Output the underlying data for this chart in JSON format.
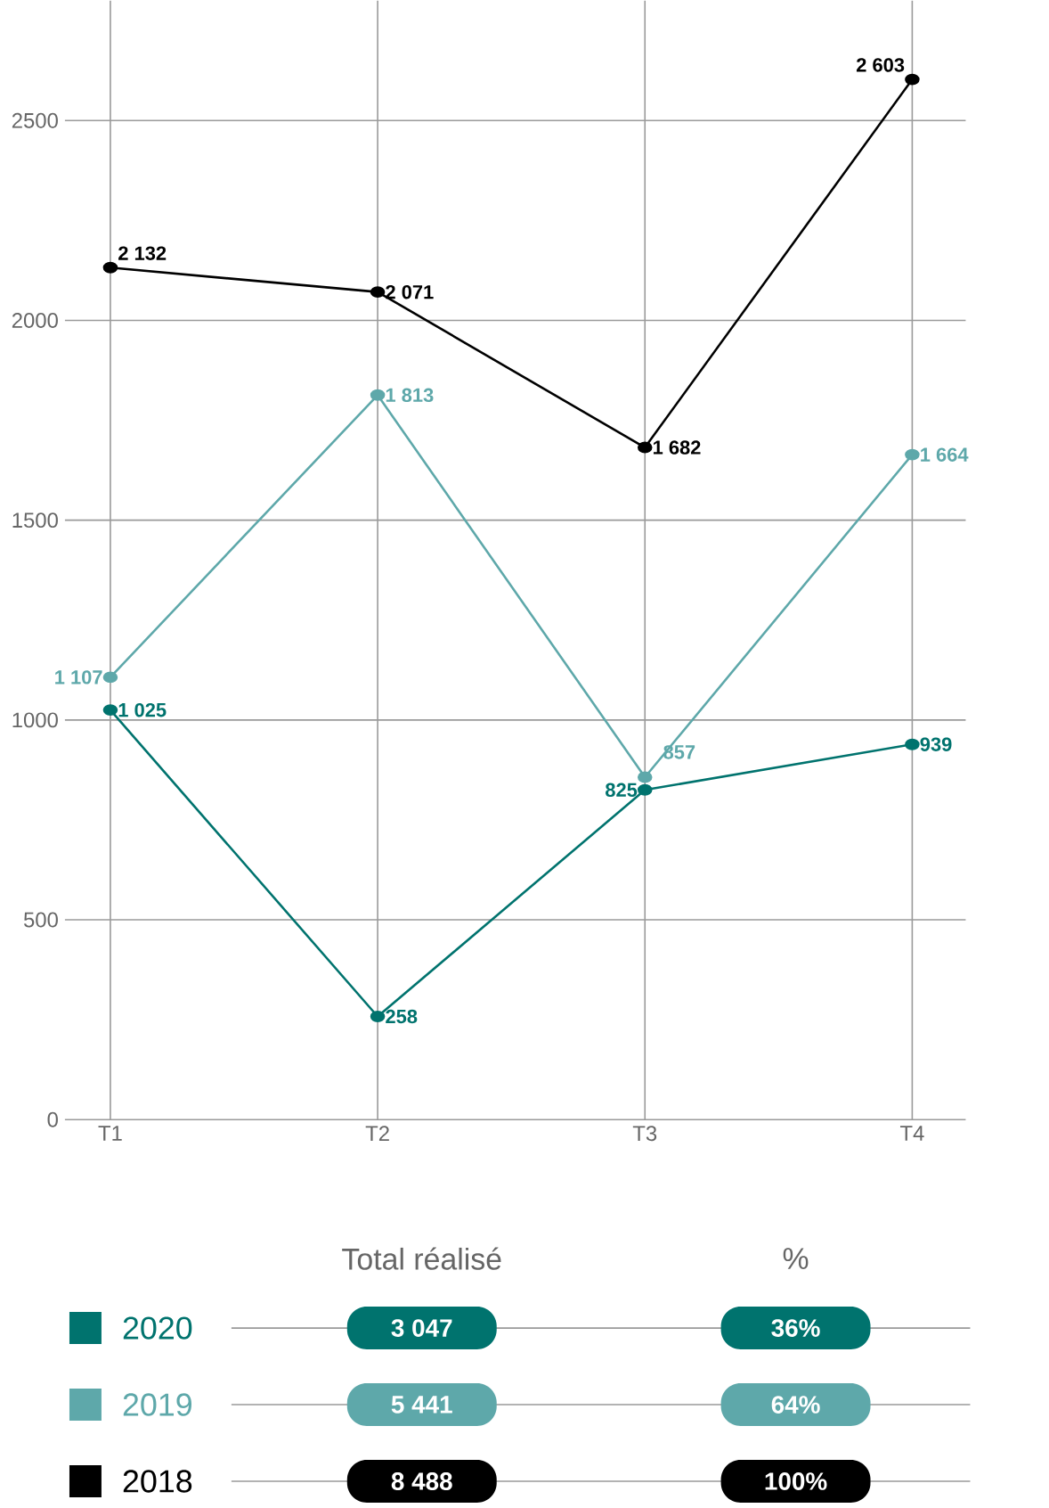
{
  "chart_data": {
    "type": "line",
    "categories": [
      "T1",
      "T2",
      "T3",
      "T4"
    ],
    "series": [
      {
        "name": "2020",
        "color": "#00736e",
        "values": [
          1025,
          258,
          825,
          939
        ],
        "value_labels": [
          "1 025",
          "258",
          "825",
          "939"
        ]
      },
      {
        "name": "2019",
        "color": "#5ea8aa",
        "values": [
          1107,
          1813,
          857,
          1664
        ],
        "value_labels": [
          "1 107",
          "1 813",
          "857",
          "1 664"
        ]
      },
      {
        "name": "2018",
        "color": "#000000",
        "values": [
          2132,
          2071,
          1682,
          2603
        ],
        "value_labels": [
          "2 132",
          "2 071",
          "1 682",
          "2 603"
        ]
      }
    ],
    "ylim": [
      0,
      2800
    ],
    "yticks": [
      0,
      500,
      1000,
      1500,
      2000,
      2500
    ],
    "grid": true,
    "legend": "bottom",
    "marker": "circle",
    "line_style": "solid",
    "annotations": [
      "Total réalisé",
      "%",
      "3 047",
      "36%",
      "5 441",
      "64%",
      "8 488",
      "100%"
    ]
  }
}
